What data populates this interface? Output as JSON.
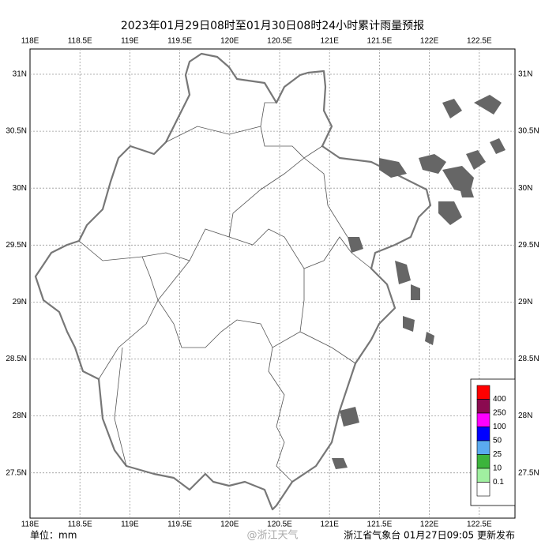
{
  "title": "2023年01月29日08时至01月30日08时24小时累计雨量预报",
  "lon_labels": [
    "118E",
    "118.5E",
    "119E",
    "119.5E",
    "120E",
    "120.5E",
    "121E",
    "121.5E",
    "122E",
    "122.5E"
  ],
  "lat_labels": [
    "31N",
    "30.5N",
    "30N",
    "29.5N",
    "29N",
    "28.5N",
    "28N",
    "27.5N"
  ],
  "legend": {
    "labels": [
      "400",
      "250",
      "100",
      "50",
      "25",
      "10",
      "0.1"
    ],
    "colors": [
      "#ff0000",
      "#8b0a50",
      "#ff00ff",
      "#0000ff",
      "#5aaaf0",
      "#3cb43c",
      "#a0f0a0",
      "#ffffff"
    ]
  },
  "unit": "单位：mm",
  "watermark": "@浙江天气",
  "issuer": "浙江省气象台 01月27日09:05 更新发布"
}
